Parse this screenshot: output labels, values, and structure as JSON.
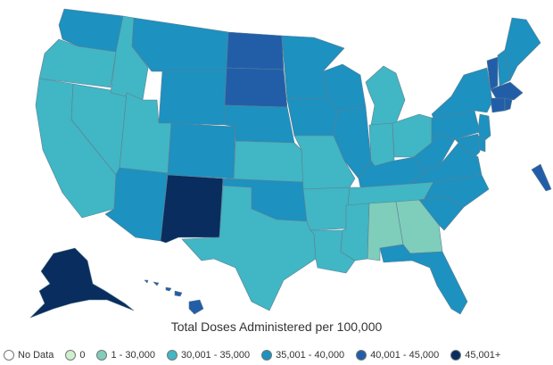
{
  "legend": {
    "title": "Total Doses Administered per 100,000",
    "items": [
      {
        "label": "No Data",
        "color": "#ffffff"
      },
      {
        "label": "0",
        "color": "#ccf0cc"
      },
      {
        "label": "1 - 30,000",
        "color": "#7fcdbb"
      },
      {
        "label": "30,001 - 35,000",
        "color": "#41b6c4"
      },
      {
        "label": "35,001 - 40,000",
        "color": "#1d91c0"
      },
      {
        "label": "40,001 - 45,000",
        "color": "#225ea8"
      },
      {
        "label": "45,001+",
        "color": "#082d5e"
      }
    ]
  },
  "states": {
    "WA": 4,
    "OR": 3,
    "CA": 3,
    "NV": 3,
    "ID": 3,
    "MT": 4,
    "WY": 4,
    "UT": 3,
    "AZ": 4,
    "CO": 4,
    "NM": 6,
    "ND": 5,
    "SD": 5,
    "NE": 4,
    "KS": 3,
    "OK": 4,
    "TX": 3,
    "MN": 4,
    "IA": 4,
    "MO": 3,
    "AR": 3,
    "LA": 3,
    "WI": 4,
    "IL": 4,
    "MI": 3,
    "IN": 3,
    "OH": 3,
    "KY": 4,
    "TN": 3,
    "MS": 3,
    "AL": 2,
    "GA": 2,
    "FL": 4,
    "SC": 4,
    "NC": 4,
    "VA": 4,
    "WV": 4,
    "PA": 4,
    "NY": 4,
    "VT": 5,
    "NH": 4,
    "ME": 4,
    "MA": 5,
    "CT": 5,
    "RI": 5,
    "NJ": 4,
    "DE": 4,
    "MD": 4,
    "PR": 5,
    "AK": 6,
    "HI": 5
  }
}
